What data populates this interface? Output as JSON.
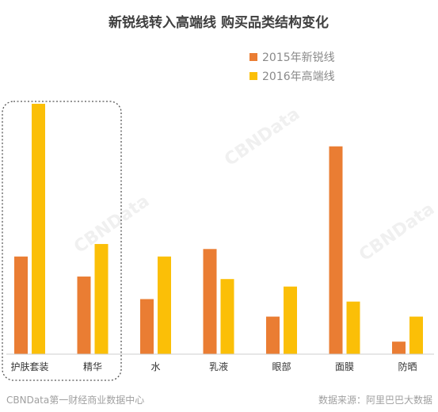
{
  "footer": {
    "left": "CBNData第一财经商业数据中心",
    "right": "数据来源：阿里巴巴大数据"
  },
  "watermark": {
    "text": "CBNData"
  },
  "colors": {
    "series_2015": "#ea7d33",
    "series_2016": "#fbbf07",
    "axis": "#cfcfcf",
    "highlight_box": "#555555"
  },
  "chart_data": {
    "type": "bar",
    "title": "新锐线转入高端线 购买品类结构变化",
    "xlabel": "",
    "ylabel": "",
    "categories": [
      "护肤套装",
      "精华",
      "水",
      "乳液",
      "眼部",
      "面膜",
      "防晒"
    ],
    "series": [
      {
        "name": "2015年新锐线",
        "values": [
          39,
          31,
          22,
          42,
          15,
          83,
          5
        ]
      },
      {
        "name": "2016年高端线",
        "values": [
          100,
          44,
          39,
          30,
          27,
          21,
          15
        ]
      }
    ],
    "ylim": [
      0,
      100
    ],
    "grid": false,
    "legend_position": "top-right",
    "highlight_categories": [
      "护肤套装",
      "精华"
    ]
  }
}
